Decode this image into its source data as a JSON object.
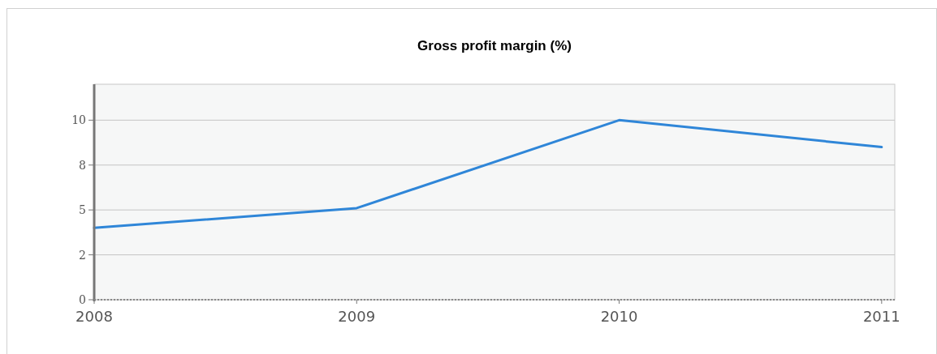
{
  "chart_data": {
    "type": "line",
    "title": "Gross profit margin (%)",
    "x": [
      2008,
      2009,
      2010,
      2011
    ],
    "series": [
      {
        "color": "#2f86d8",
        "values": [
          4.0,
          5.1,
          10.0,
          8.5
        ]
      }
    ],
    "xlim": [
      2008,
      2011.05
    ],
    "xticks": [
      2008,
      2009,
      2010,
      2011
    ],
    "ylim": [
      0,
      12
    ],
    "yticks": [
      0,
      {
        "value": 2.5,
        "label": "2"
      },
      5,
      {
        "value": 7.5,
        "label": "8"
      },
      10
    ],
    "grid": "y",
    "marker": "none",
    "line_style": "solid"
  }
}
